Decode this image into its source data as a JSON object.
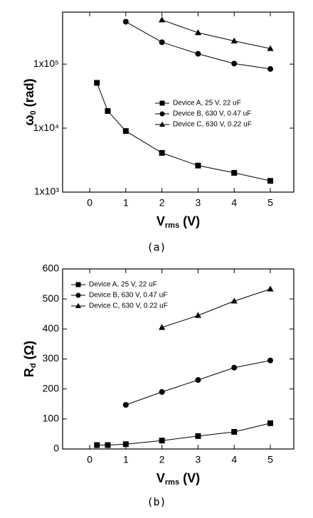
{
  "chart_data": [
    {
      "type": "line",
      "log_y": true,
      "legend": "center-right",
      "ylabel": {
        "main": "ω",
        "sub": "0",
        "unit": " (rad)"
      },
      "xlabel": {
        "main": "V",
        "sub": "rms",
        "unit": " (V)"
      },
      "caption": "(a)",
      "x": [
        0.2,
        0.5,
        1,
        2,
        3,
        4,
        5
      ],
      "series": [
        {
          "name": "Device A, 25 V, 22 uF",
          "color": "#000000",
          "marker": "square",
          "values": [
            51000,
            18500,
            9000,
            4100,
            2600,
            2000,
            1500
          ]
        },
        {
          "name": "Device B, 630 V, 0.47 uF",
          "color": "#000000",
          "marker": "circle",
          "values": [
            null,
            null,
            460000,
            220000,
            145000,
            102000,
            84000
          ]
        },
        {
          "name": "Device C, 630 V, 0.22 uF",
          "color": "#000000",
          "marker": "triangle",
          "values": [
            null,
            null,
            null,
            490000,
            310000,
            230000,
            175000
          ]
        }
      ],
      "xlim": [
        -0.75,
        5.65
      ],
      "xticks": [
        0,
        1,
        2,
        3,
        4,
        5
      ],
      "ylim": [
        1000,
        650000
      ],
      "yticks": [
        {
          "value": 1000,
          "label": "1x10³"
        },
        {
          "value": 10000,
          "label": "1x10⁴"
        },
        {
          "value": 100000,
          "label": "1x10⁵"
        }
      ]
    },
    {
      "type": "line",
      "log_y": false,
      "legend": "upper-left",
      "ylabel": {
        "main": "R",
        "sub": "d",
        "unit": " (Ω)"
      },
      "xlabel": {
        "main": "V",
        "sub": "rms",
        "unit": " (V)"
      },
      "caption": "(b)",
      "x": [
        0.2,
        0.5,
        1,
        2,
        3,
        4,
        5
      ],
      "series": [
        {
          "name": "Device A, 25 V, 22 uF",
          "color": "#000000",
          "marker": "square",
          "values": [
            13,
            13,
            16,
            28,
            43,
            57,
            86
          ]
        },
        {
          "name": "Device B, 630 V, 0.47 uF",
          "color": "#000000",
          "marker": "circle",
          "values": [
            null,
            null,
            147,
            190,
            230,
            271,
            295
          ]
        },
        {
          "name": "Device C, 630 V, 0.22 uF",
          "color": "#000000",
          "marker": "triangle",
          "values": [
            null,
            null,
            null,
            405,
            445,
            493,
            533
          ]
        }
      ],
      "xlim": [
        -0.75,
        5.65
      ],
      "xticks": [
        0,
        1,
        2,
        3,
        4,
        5
      ],
      "ylim": [
        0,
        600
      ],
      "yticks": [
        0,
        100,
        200,
        300,
        400,
        500,
        600
      ]
    }
  ]
}
